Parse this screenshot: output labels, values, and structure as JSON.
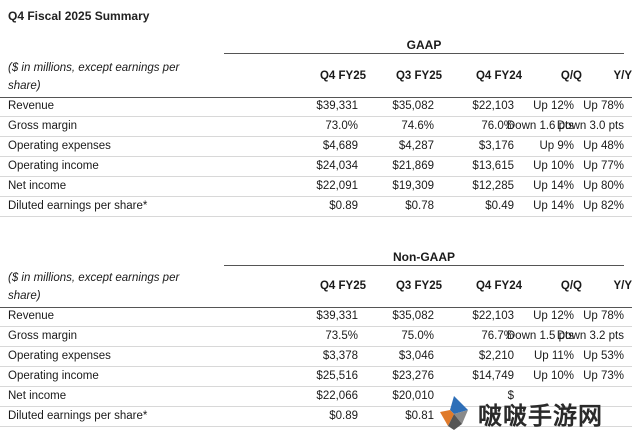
{
  "title": "Q4 Fiscal 2025 Summary",
  "columns": [
    "Q4 FY25",
    "Q3 FY25",
    "Q4 FY24",
    "Q/Q",
    "Y/Y"
  ],
  "note": "($ in millions, except earnings per share)",
  "gaap": {
    "heading": "GAAP",
    "rows": [
      {
        "label": "Revenue",
        "q4fy25": "$39,331",
        "q3fy25": "$35,082",
        "q4fy24": "$22,103",
        "qq": "Up 12%",
        "yy": "Up 78%"
      },
      {
        "label": "Gross margin",
        "q4fy25": "73.0%",
        "q3fy25": "74.6%",
        "q4fy24": "76.0%",
        "qq": "Down 1.6 pts",
        "yy": "Down 3.0 pts"
      },
      {
        "label": "Operating expenses",
        "q4fy25": "$4,689",
        "q3fy25": "$4,287",
        "q4fy24": "$3,176",
        "qq": "Up 9%",
        "yy": "Up 48%"
      },
      {
        "label": "Operating income",
        "q4fy25": "$24,034",
        "q3fy25": "$21,869",
        "q4fy24": "$13,615",
        "qq": "Up 10%",
        "yy": "Up 77%"
      },
      {
        "label": "Net income",
        "q4fy25": "$22,091",
        "q3fy25": "$19,309",
        "q4fy24": "$12,285",
        "qq": "Up 14%",
        "yy": "Up 80%"
      },
      {
        "label": "Diluted earnings per share*",
        "q4fy25": "$0.89",
        "q3fy25": "$0.78",
        "q4fy24": "$0.49",
        "qq": "Up 14%",
        "yy": "Up 82%"
      }
    ]
  },
  "nongaap": {
    "heading": "Non-GAAP",
    "rows": [
      {
        "label": "Revenue",
        "q4fy25": "$39,331",
        "q3fy25": "$35,082",
        "q4fy24": "$22,103",
        "qq": "Up 12%",
        "yy": "Up 78%"
      },
      {
        "label": "Gross margin",
        "q4fy25": "73.5%",
        "q3fy25": "75.0%",
        "q4fy24": "76.7%",
        "qq": "Down 1.5 pts",
        "yy": "Down 3.2 pts"
      },
      {
        "label": "Operating expenses",
        "q4fy25": "$3,378",
        "q3fy25": "$3,046",
        "q4fy24": "$2,210",
        "qq": "Up 11%",
        "yy": "Up 53%"
      },
      {
        "label": "Operating income",
        "q4fy25": "$25,516",
        "q3fy25": "$23,276",
        "q4fy24": "$14,749",
        "qq": "Up 10%",
        "yy": "Up 73%"
      },
      {
        "label": "Net income",
        "q4fy25": "$22,066",
        "q3fy25": "$20,010",
        "q4fy24": "$",
        "qq": "",
        "yy": ""
      },
      {
        "label": "Diluted earnings per share*",
        "q4fy25": "$0.89",
        "q3fy25": "$0.81",
        "q4fy24": "",
        "qq": "",
        "yy": ""
      }
    ]
  },
  "watermark": {
    "text": "啵啵手游网",
    "logo_icon": "diamond-logo-icon"
  }
}
